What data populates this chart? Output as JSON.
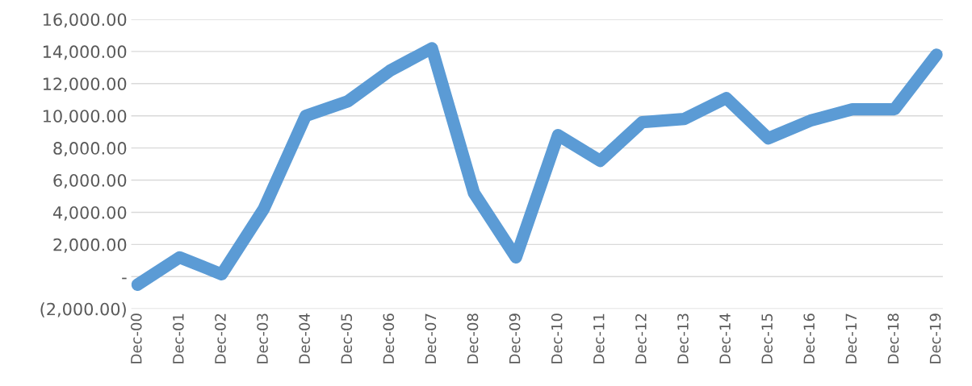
{
  "chart_data": {
    "type": "line",
    "categories": [
      "Dec-00",
      "Dec-01",
      "Dec-02",
      "Dec-03",
      "Dec-04",
      "Dec-05",
      "Dec-06",
      "Dec-07",
      "Dec-08",
      "Dec-09",
      "Dec-10",
      "Dec-11",
      "Dec-12",
      "Dec-13",
      "Dec-14",
      "Dec-15",
      "Dec-16",
      "Dec-17",
      "Dec-18",
      "Dec-19"
    ],
    "series": [
      {
        "color": "#5b9bd5",
        "values": [
          -500,
          1200,
          150,
          4200,
          10000,
          10900,
          12800,
          14200,
          5200,
          1200,
          8800,
          7200,
          9600,
          9800,
          11100,
          8600,
          9700,
          10400,
          10400,
          13800
        ]
      }
    ],
    "ylim": [
      -2000,
      16000
    ],
    "yticks": [
      {
        "value": -2000,
        "label": "(2,000.00)"
      },
      {
        "value": 0,
        "label": "-"
      },
      {
        "value": 2000,
        "label": "2,000.00"
      },
      {
        "value": 4000,
        "label": "4,000.00"
      },
      {
        "value": 6000,
        "label": "6,000.00"
      },
      {
        "value": 8000,
        "label": "8,000.00"
      },
      {
        "value": 10000,
        "label": "10,000.00"
      },
      {
        "value": 12000,
        "label": "12,000.00"
      },
      {
        "value": 14000,
        "label": "14,000.00"
      },
      {
        "value": 16000,
        "label": "16,000.00"
      }
    ],
    "grid": "y",
    "marker": "none",
    "line_style": "solid",
    "legend": false
  }
}
